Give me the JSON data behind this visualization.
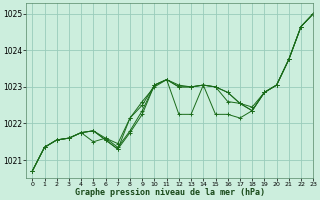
{
  "title": "Graphe pression niveau de la mer (hPa)",
  "background_color": "#cceedd",
  "grid_color": "#99ccbb",
  "line_color": "#1a6b1a",
  "xlim": [
    -0.5,
    23
  ],
  "ylim": [
    1020.5,
    1025.3
  ],
  "yticks": [
    1021,
    1022,
    1023,
    1024,
    1025
  ],
  "xticks": [
    0,
    1,
    2,
    3,
    4,
    5,
    6,
    7,
    8,
    9,
    10,
    11,
    12,
    13,
    14,
    15,
    16,
    17,
    18,
    19,
    20,
    21,
    22,
    23
  ],
  "series": [
    [
      1020.7,
      1021.35,
      1021.55,
      1021.6,
      1021.75,
      1021.8,
      1021.55,
      1021.3,
      1021.75,
      1022.25,
      1023.05,
      1023.2,
      1023.05,
      1023.0,
      1023.05,
      1023.0,
      1022.6,
      1022.55,
      1022.45,
      1022.85,
      1023.05,
      1023.75,
      1024.65,
      1025.0
    ],
    [
      1020.7,
      1021.35,
      1021.55,
      1021.6,
      1021.75,
      1021.8,
      1021.55,
      1021.3,
      1022.15,
      1022.5,
      1023.05,
      1023.2,
      1023.0,
      1023.0,
      1023.05,
      1023.0,
      1022.85,
      1022.55,
      1022.35,
      1022.85,
      1023.05,
      1023.75,
      1024.65,
      1025.0
    ],
    [
      1020.7,
      1021.35,
      1021.55,
      1021.6,
      1021.75,
      1021.5,
      1021.6,
      1021.45,
      1022.15,
      1022.6,
      1023.0,
      1023.2,
      1022.25,
      1022.25,
      1023.05,
      1022.25,
      1022.25,
      1022.15,
      1022.35,
      1022.85,
      1023.05,
      1023.75,
      1024.65,
      1025.0
    ],
    [
      1020.7,
      1021.35,
      1021.55,
      1021.6,
      1021.75,
      1021.8,
      1021.6,
      1021.35,
      1021.8,
      1022.35,
      1023.05,
      1023.2,
      1023.0,
      1023.0,
      1023.05,
      1023.0,
      1022.85,
      1022.55,
      1022.35,
      1022.85,
      1023.05,
      1023.75,
      1024.65,
      1025.0
    ]
  ]
}
